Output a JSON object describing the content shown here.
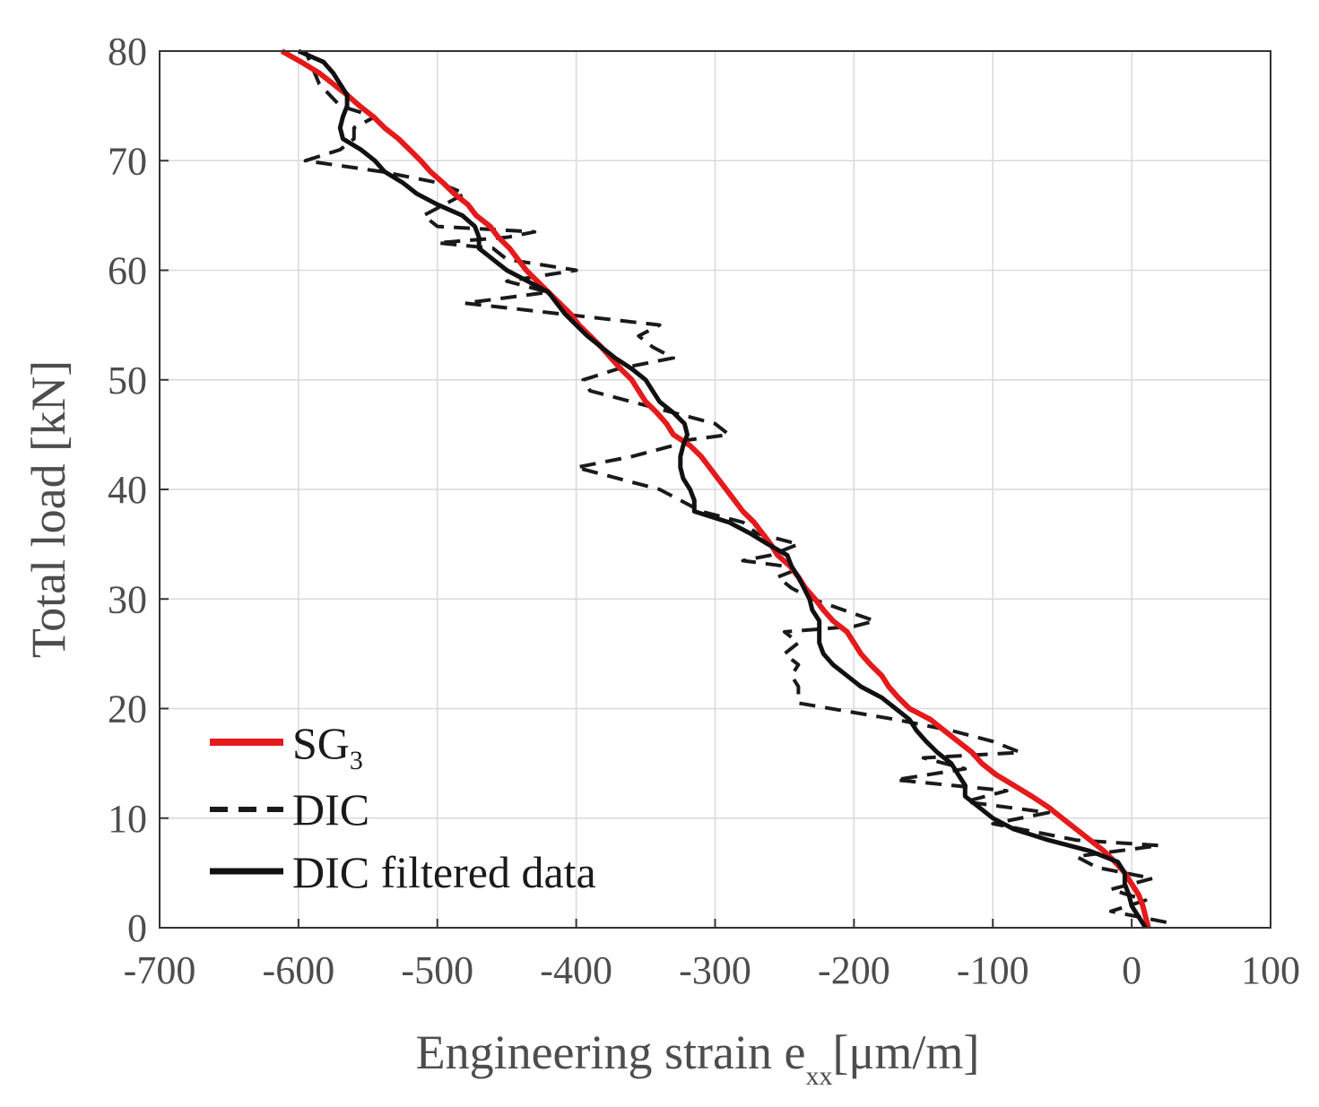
{
  "chart_data": {
    "type": "line",
    "title": "",
    "xlabel": {
      "main": "Engineering strain e",
      "subscript": "xx",
      "unit": "[μm/m]"
    },
    "ylabel": "Total load [kN]",
    "xlim": [
      -700,
      100
    ],
    "ylim": [
      0,
      80
    ],
    "xticks": [
      -700,
      -600,
      -500,
      -400,
      -300,
      -200,
      -100,
      0,
      100
    ],
    "yticks": [
      0,
      10,
      20,
      30,
      40,
      50,
      60,
      70,
      80
    ],
    "grid": true,
    "legend_position": "lower-left",
    "colors": {
      "sg": "#e41a1c",
      "dic": "#1a1a1a",
      "filtered": "#111111",
      "grid": "#d9d9d9",
      "axis": "#333333"
    },
    "series": [
      {
        "name": "SG",
        "name_subscript": "3",
        "style": "solid-red",
        "points": [
          [
            12,
            0
          ],
          [
            10,
            1
          ],
          [
            8,
            2
          ],
          [
            5,
            3
          ],
          [
            0,
            4
          ],
          [
            -5,
            5
          ],
          [
            -12,
            6
          ],
          [
            -20,
            7
          ],
          [
            -30,
            8
          ],
          [
            -40,
            9
          ],
          [
            -50,
            10
          ],
          [
            -60,
            11
          ],
          [
            -72,
            12
          ],
          [
            -85,
            13
          ],
          [
            -98,
            14
          ],
          [
            -108,
            15
          ],
          [
            -115,
            16
          ],
          [
            -125,
            17
          ],
          [
            -135,
            18
          ],
          [
            -145,
            19
          ],
          [
            -160,
            20
          ],
          [
            -168,
            21
          ],
          [
            -175,
            22
          ],
          [
            -180,
            23
          ],
          [
            -188,
            24
          ],
          [
            -195,
            25
          ],
          [
            -200,
            26
          ],
          [
            -205,
            27
          ],
          [
            -215,
            28
          ],
          [
            -222,
            29
          ],
          [
            -228,
            30
          ],
          [
            -235,
            31
          ],
          [
            -240,
            32
          ],
          [
            -246,
            33
          ],
          [
            -255,
            34
          ],
          [
            -260,
            35
          ],
          [
            -266,
            36
          ],
          [
            -272,
            37
          ],
          [
            -280,
            38
          ],
          [
            -286,
            39
          ],
          [
            -292,
            40
          ],
          [
            -298,
            41
          ],
          [
            -304,
            42
          ],
          [
            -310,
            43
          ],
          [
            -318,
            44
          ],
          [
            -330,
            45
          ],
          [
            -335,
            46
          ],
          [
            -342,
            47
          ],
          [
            -350,
            48
          ],
          [
            -355,
            49
          ],
          [
            -360,
            50
          ],
          [
            -368,
            51
          ],
          [
            -375,
            52
          ],
          [
            -382,
            53
          ],
          [
            -390,
            54
          ],
          [
            -398,
            55
          ],
          [
            -404,
            56
          ],
          [
            -412,
            57
          ],
          [
            -420,
            58
          ],
          [
            -428,
            59
          ],
          [
            -436,
            60
          ],
          [
            -442,
            61
          ],
          [
            -448,
            62
          ],
          [
            -456,
            63
          ],
          [
            -462,
            64
          ],
          [
            -472,
            65
          ],
          [
            -478,
            66
          ],
          [
            -488,
            67
          ],
          [
            -496,
            68
          ],
          [
            -505,
            69
          ],
          [
            -512,
            70
          ],
          [
            -520,
            71
          ],
          [
            -528,
            72
          ],
          [
            -538,
            73
          ],
          [
            -546,
            74
          ],
          [
            -556,
            75
          ],
          [
            -565,
            76
          ],
          [
            -575,
            77
          ],
          [
            -585,
            78
          ],
          [
            -598,
            79
          ],
          [
            -612,
            80
          ]
        ]
      },
      {
        "name": "DIC",
        "style": "dashed",
        "points": [
          [
            25,
            0.5
          ],
          [
            -15,
            1.5
          ],
          [
            10,
            2.5
          ],
          [
            -15,
            3.5
          ],
          [
            15,
            4.5
          ],
          [
            -25,
            5.5
          ],
          [
            -40,
            6.5
          ],
          [
            20,
            7.5
          ],
          [
            -40,
            8
          ],
          [
            -100,
            9.5
          ],
          [
            -60,
            10.5
          ],
          [
            -120,
            11.5
          ],
          [
            -90,
            12.5
          ],
          [
            -170,
            13.5
          ],
          [
            -120,
            14.5
          ],
          [
            -150,
            15.5
          ],
          [
            -80,
            16
          ],
          [
            -100,
            17
          ],
          [
            -130,
            18
          ],
          [
            -170,
            19
          ],
          [
            -240,
            20.5
          ],
          [
            -240,
            22
          ],
          [
            -245,
            23
          ],
          [
            -240,
            24
          ],
          [
            -250,
            25
          ],
          [
            -240,
            26
          ],
          [
            -250,
            27
          ],
          [
            -200,
            27.5
          ],
          [
            -185,
            28
          ],
          [
            -230,
            30
          ],
          [
            -245,
            31
          ],
          [
            -255,
            32
          ],
          [
            -245,
            32.5
          ],
          [
            -250,
            33
          ],
          [
            -280,
            33.5
          ],
          [
            -260,
            34
          ],
          [
            -240,
            35
          ],
          [
            -270,
            36
          ],
          [
            -280,
            37
          ],
          [
            -310,
            38
          ],
          [
            -325,
            39
          ],
          [
            -340,
            40
          ],
          [
            -400,
            42
          ],
          [
            -360,
            43
          ],
          [
            -330,
            44
          ],
          [
            -320,
            44.5
          ],
          [
            -290,
            45
          ],
          [
            -300,
            46
          ],
          [
            -330,
            47
          ],
          [
            -390,
            49
          ],
          [
            -395,
            50
          ],
          [
            -370,
            51
          ],
          [
            -330,
            52
          ],
          [
            -345,
            53
          ],
          [
            -355,
            54
          ],
          [
            -340,
            55
          ],
          [
            -410,
            56
          ],
          [
            -480,
            57
          ],
          [
            -420,
            58
          ],
          [
            -450,
            59
          ],
          [
            -400,
            60
          ],
          [
            -450,
            61
          ],
          [
            -460,
            62
          ],
          [
            -500,
            62.5
          ],
          [
            -450,
            63
          ],
          [
            -430,
            63.5
          ],
          [
            -500,
            64
          ],
          [
            -510,
            65
          ],
          [
            -495,
            66
          ],
          [
            -480,
            67
          ],
          [
            -500,
            68
          ],
          [
            -540,
            69
          ],
          [
            -595,
            70
          ],
          [
            -570,
            71
          ],
          [
            -560,
            72
          ],
          [
            -560,
            73
          ],
          [
            -545,
            74
          ],
          [
            -570,
            75
          ],
          [
            -585,
            77
          ],
          [
            -595,
            80
          ]
        ]
      },
      {
        "name": "DIC filtered data",
        "style": "solid-black",
        "points": [
          [
            10,
            0
          ],
          [
            5,
            1
          ],
          [
            0,
            2
          ],
          [
            -2,
            3
          ],
          [
            -5,
            4
          ],
          [
            -5,
            5
          ],
          [
            -10,
            6
          ],
          [
            -30,
            7
          ],
          [
            -60,
            8
          ],
          [
            -85,
            9
          ],
          [
            -100,
            10
          ],
          [
            -110,
            11
          ],
          [
            -120,
            12
          ],
          [
            -120,
            13
          ],
          [
            -125,
            14
          ],
          [
            -130,
            15
          ],
          [
            -140,
            16
          ],
          [
            -148,
            17
          ],
          [
            -155,
            18
          ],
          [
            -160,
            19
          ],
          [
            -170,
            20
          ],
          [
            -180,
            21
          ],
          [
            -195,
            22
          ],
          [
            -205,
            23
          ],
          [
            -215,
            24
          ],
          [
            -222,
            25
          ],
          [
            -225,
            26
          ],
          [
            -225,
            27
          ],
          [
            -225,
            28
          ],
          [
            -230,
            29
          ],
          [
            -232,
            30
          ],
          [
            -236,
            31
          ],
          [
            -240,
            32
          ],
          [
            -245,
            33
          ],
          [
            -248,
            34
          ],
          [
            -262,
            35
          ],
          [
            -275,
            36
          ],
          [
            -290,
            37
          ],
          [
            -315,
            38
          ],
          [
            -315,
            39
          ],
          [
            -318,
            40
          ],
          [
            -323,
            41
          ],
          [
            -325,
            42
          ],
          [
            -325,
            43
          ],
          [
            -323,
            44
          ],
          [
            -320,
            45
          ],
          [
            -322,
            46
          ],
          [
            -330,
            47
          ],
          [
            -340,
            48
          ],
          [
            -345,
            49
          ],
          [
            -350,
            50
          ],
          [
            -360,
            51
          ],
          [
            -372,
            52
          ],
          [
            -382,
            53
          ],
          [
            -392,
            54
          ],
          [
            -400,
            55
          ],
          [
            -408,
            56
          ],
          [
            -414,
            57
          ],
          [
            -420,
            58
          ],
          [
            -435,
            59
          ],
          [
            -450,
            60
          ],
          [
            -460,
            61
          ],
          [
            -470,
            62
          ],
          [
            -470,
            63
          ],
          [
            -473,
            64
          ],
          [
            -482,
            65
          ],
          [
            -500,
            66
          ],
          [
            -515,
            67
          ],
          [
            -525,
            68
          ],
          [
            -538,
            69
          ],
          [
            -545,
            70
          ],
          [
            -555,
            71
          ],
          [
            -568,
            72
          ],
          [
            -570,
            73
          ],
          [
            -568,
            74
          ],
          [
            -565,
            75
          ],
          [
            -565,
            76
          ],
          [
            -570,
            77
          ],
          [
            -575,
            78
          ],
          [
            -582,
            79
          ],
          [
            -600,
            80
          ]
        ]
      }
    ]
  }
}
